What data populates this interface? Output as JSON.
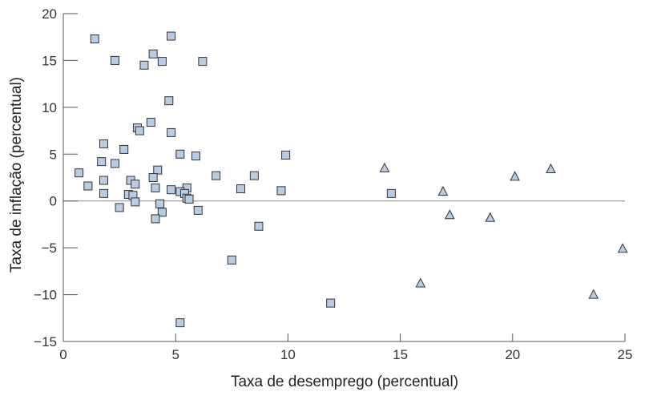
{
  "chart_data": {
    "type": "scatter",
    "xlabel": "Taxa de desemprego (percentual)",
    "ylabel": "Taxa de inflação (percentual)",
    "xlim": [
      0,
      25
    ],
    "ylim": [
      -15,
      20
    ],
    "xticks": [
      "0",
      "5",
      "10",
      "15",
      "20",
      "25"
    ],
    "yticks": [
      "20",
      "15",
      "10",
      "5",
      "0",
      "−5",
      "−10",
      "−15"
    ],
    "grid": false,
    "zero_line": true,
    "marker_fill": "#b8cce4",
    "marker_stroke": "#333333",
    "series": [
      {
        "marker": "square",
        "points": [
          [
            1.4,
            17.3
          ],
          [
            4.8,
            17.6
          ],
          [
            2.3,
            15.0
          ],
          [
            4.0,
            15.7
          ],
          [
            4.4,
            14.9
          ],
          [
            3.6,
            14.5
          ],
          [
            6.2,
            14.9
          ],
          [
            4.7,
            10.7
          ],
          [
            3.3,
            7.8
          ],
          [
            3.4,
            7.5
          ],
          [
            3.9,
            8.4
          ],
          [
            4.8,
            7.3
          ],
          [
            1.8,
            6.1
          ],
          [
            2.7,
            5.5
          ],
          [
            5.2,
            5.0
          ],
          [
            5.9,
            4.8
          ],
          [
            9.9,
            4.9
          ],
          [
            1.7,
            4.2
          ],
          [
            2.3,
            4.0
          ],
          [
            0.7,
            3.0
          ],
          [
            4.2,
            3.3
          ],
          [
            4.0,
            2.5
          ],
          [
            3.0,
            2.2
          ],
          [
            1.8,
            2.2
          ],
          [
            6.8,
            2.7
          ],
          [
            8.5,
            2.7
          ],
          [
            1.1,
            1.6
          ],
          [
            3.2,
            1.8
          ],
          [
            4.1,
            1.4
          ],
          [
            5.5,
            1.4
          ],
          [
            7.9,
            1.3
          ],
          [
            9.7,
            1.1
          ],
          [
            1.8,
            0.8
          ],
          [
            2.9,
            0.7
          ],
          [
            3.1,
            0.6
          ],
          [
            4.8,
            1.2
          ],
          [
            5.2,
            1.0
          ],
          [
            5.4,
            0.8
          ],
          [
            5.5,
            0.3
          ],
          [
            5.6,
            0.2
          ],
          [
            3.2,
            -0.1
          ],
          [
            4.3,
            -0.3
          ],
          [
            2.5,
            -0.7
          ],
          [
            4.4,
            -1.2
          ],
          [
            6.0,
            -1.0
          ],
          [
            14.6,
            0.8
          ],
          [
            4.1,
            -1.9
          ],
          [
            8.7,
            -2.7
          ],
          [
            7.5,
            -6.3
          ],
          [
            11.9,
            -10.9
          ],
          [
            5.2,
            -13.0
          ]
        ]
      },
      {
        "marker": "triangle",
        "points": [
          [
            14.3,
            3.5
          ],
          [
            16.9,
            1.0
          ],
          [
            17.2,
            -1.5
          ],
          [
            20.1,
            2.6
          ],
          [
            21.7,
            3.4
          ],
          [
            19.0,
            -1.8
          ],
          [
            15.9,
            -8.8
          ],
          [
            23.6,
            -10.0
          ],
          [
            24.9,
            -5.1
          ]
        ]
      }
    ]
  }
}
